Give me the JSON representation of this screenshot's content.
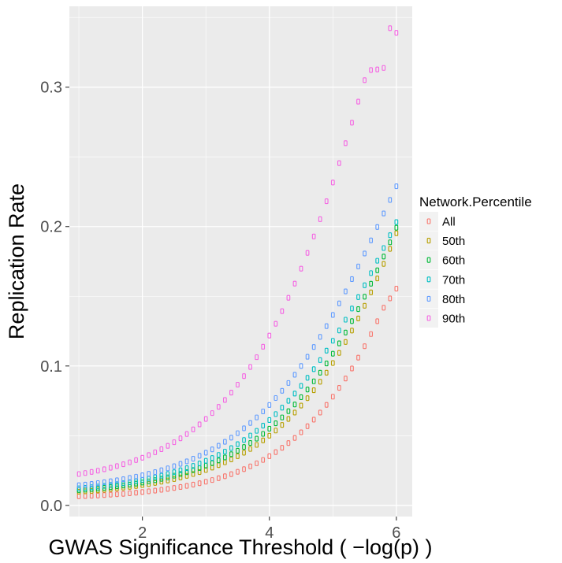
{
  "chart_data": {
    "type": "scatter",
    "title": "",
    "xlabel": "GWAS Significance Threshold ( −log(p) )",
    "ylabel": "Replication Rate",
    "xlim": [
      0.85,
      6.25
    ],
    "ylim": [
      -0.008,
      0.358
    ],
    "x_ticks": [
      2,
      4,
      6
    ],
    "x_tick_labels": [
      "2",
      "4",
      "6"
    ],
    "y_ticks": [
      0.0,
      0.1,
      0.2,
      0.3
    ],
    "y_tick_labels": [
      "0.0",
      "0.1",
      "0.2",
      "0.3"
    ],
    "grid": true,
    "legend_title": "Network.Percentile",
    "legend_position": "right",
    "x": [
      1.0,
      1.1,
      1.2,
      1.3,
      1.4,
      1.5,
      1.6,
      1.7,
      1.8,
      1.9,
      2.0,
      2.1,
      2.2,
      2.3,
      2.4,
      2.5,
      2.6,
      2.7,
      2.8,
      2.9,
      3.0,
      3.1,
      3.2,
      3.3,
      3.4,
      3.5,
      3.6,
      3.7,
      3.8,
      3.9,
      4.0,
      4.1,
      4.2,
      4.3,
      4.4,
      4.5,
      4.6,
      4.7,
      4.8,
      4.9,
      5.0,
      5.1,
      5.2,
      5.3,
      5.4,
      5.5,
      5.6,
      5.7,
      5.8,
      5.9,
      6.0
    ],
    "series": [
      {
        "name": "All",
        "color": "#F8766D",
        "values": [
          0.0065,
          0.0067,
          0.0069,
          0.0071,
          0.0074,
          0.0077,
          0.008,
          0.0083,
          0.0087,
          0.0091,
          0.0096,
          0.0101,
          0.0106,
          0.0112,
          0.0118,
          0.0125,
          0.0132,
          0.014,
          0.0149,
          0.0159,
          0.017,
          0.0182,
          0.0195,
          0.0209,
          0.0224,
          0.0241,
          0.026,
          0.028,
          0.0302,
          0.0326,
          0.0353,
          0.0382,
          0.0413,
          0.0447,
          0.0484,
          0.0524,
          0.0568,
          0.0615,
          0.0666,
          0.0721,
          0.078,
          0.0843,
          0.091,
          0.0982,
          0.106,
          0.1142,
          0.1229,
          0.1321,
          0.1418,
          0.1485,
          0.1555
        ]
      },
      {
        "name": "50th",
        "color": "#B79F00",
        "values": [
          0.0098,
          0.0101,
          0.0104,
          0.0108,
          0.0112,
          0.0117,
          0.0122,
          0.0127,
          0.0133,
          0.0139,
          0.0146,
          0.0153,
          0.0161,
          0.017,
          0.0179,
          0.0189,
          0.02,
          0.0212,
          0.0225,
          0.0239,
          0.0254,
          0.0271,
          0.0289,
          0.0309,
          0.033,
          0.0353,
          0.0378,
          0.0405,
          0.0434,
          0.0466,
          0.05,
          0.0537,
          0.0577,
          0.062,
          0.0666,
          0.0716,
          0.0769,
          0.0826,
          0.0887,
          0.0952,
          0.1021,
          0.1094,
          0.1172,
          0.1254,
          0.1341,
          0.1432,
          0.1528,
          0.1628,
          0.1732,
          0.184,
          0.1952
        ]
      },
      {
        "name": "60th",
        "color": "#00BA38",
        "values": [
          0.011,
          0.0113,
          0.0117,
          0.0121,
          0.0126,
          0.0131,
          0.0137,
          0.0143,
          0.0149,
          0.0156,
          0.0164,
          0.0172,
          0.0181,
          0.0191,
          0.0201,
          0.0213,
          0.0225,
          0.0238,
          0.0253,
          0.0268,
          0.0285,
          0.0303,
          0.0323,
          0.0344,
          0.0367,
          0.0392,
          0.0419,
          0.0448,
          0.0479,
          0.0513,
          0.055,
          0.0589,
          0.0631,
          0.0676,
          0.0724,
          0.0776,
          0.0831,
          0.089,
          0.0952,
          0.1018,
          0.1088,
          0.1162,
          0.124,
          0.1322,
          0.1408,
          0.1497,
          0.159,
          0.1686,
          0.1785,
          0.1887,
          0.1992
        ]
      },
      {
        "name": "70th",
        "color": "#00BFC4",
        "values": [
          0.0122,
          0.0126,
          0.013,
          0.0135,
          0.014,
          0.0146,
          0.0152,
          0.0159,
          0.0166,
          0.0174,
          0.0183,
          0.0192,
          0.0202,
          0.0213,
          0.0225,
          0.0238,
          0.0252,
          0.0267,
          0.0283,
          0.0301,
          0.032,
          0.034,
          0.0362,
          0.0386,
          0.0411,
          0.0439,
          0.0469,
          0.0501,
          0.0535,
          0.0572,
          0.0612,
          0.0655,
          0.0701,
          0.075,
          0.0802,
          0.0857,
          0.0915,
          0.0977,
          0.1042,
          0.111,
          0.1181,
          0.1255,
          0.1332,
          0.1412,
          0.1494,
          0.1579,
          0.1666,
          0.1755,
          0.1846,
          0.1938,
          0.2032
        ]
      },
      {
        "name": "80th",
        "color": "#619CFF",
        "values": [
          0.0145,
          0.0149,
          0.0154,
          0.016,
          0.0166,
          0.0173,
          0.018,
          0.0188,
          0.0197,
          0.0206,
          0.0216,
          0.0227,
          0.0239,
          0.0252,
          0.0266,
          0.0281,
          0.0298,
          0.0316,
          0.0335,
          0.0356,
          0.0378,
          0.0402,
          0.0428,
          0.0456,
          0.0486,
          0.0518,
          0.0553,
          0.0591,
          0.0631,
          0.0674,
          0.072,
          0.077,
          0.0822,
          0.0878,
          0.0937,
          0.1,
          0.1066,
          0.1136,
          0.1209,
          0.1286,
          0.1366,
          0.1449,
          0.1535,
          0.1623,
          0.1714,
          0.1807,
          0.1901,
          0.1997,
          0.2094,
          0.2191,
          0.2289
        ]
      },
      {
        "name": "90th",
        "color": "#F564E3",
        "values": [
          0.0225,
          0.0232,
          0.024,
          0.0249,
          0.0259,
          0.027,
          0.0282,
          0.0295,
          0.0309,
          0.0325,
          0.0342,
          0.0361,
          0.0381,
          0.0403,
          0.0427,
          0.0453,
          0.0481,
          0.0512,
          0.0545,
          0.0581,
          0.062,
          0.0662,
          0.0707,
          0.0756,
          0.0809,
          0.0866,
          0.0927,
          0.0993,
          0.1063,
          0.1138,
          0.1218,
          0.1303,
          0.1393,
          0.1489,
          0.1591,
          0.1698,
          0.1811,
          0.1929,
          0.2053,
          0.2182,
          0.2316,
          0.2455,
          0.2598,
          0.2745,
          0.2896,
          0.305,
          0.3123,
          0.3127,
          0.3138,
          0.3423,
          0.339
        ]
      }
    ]
  }
}
